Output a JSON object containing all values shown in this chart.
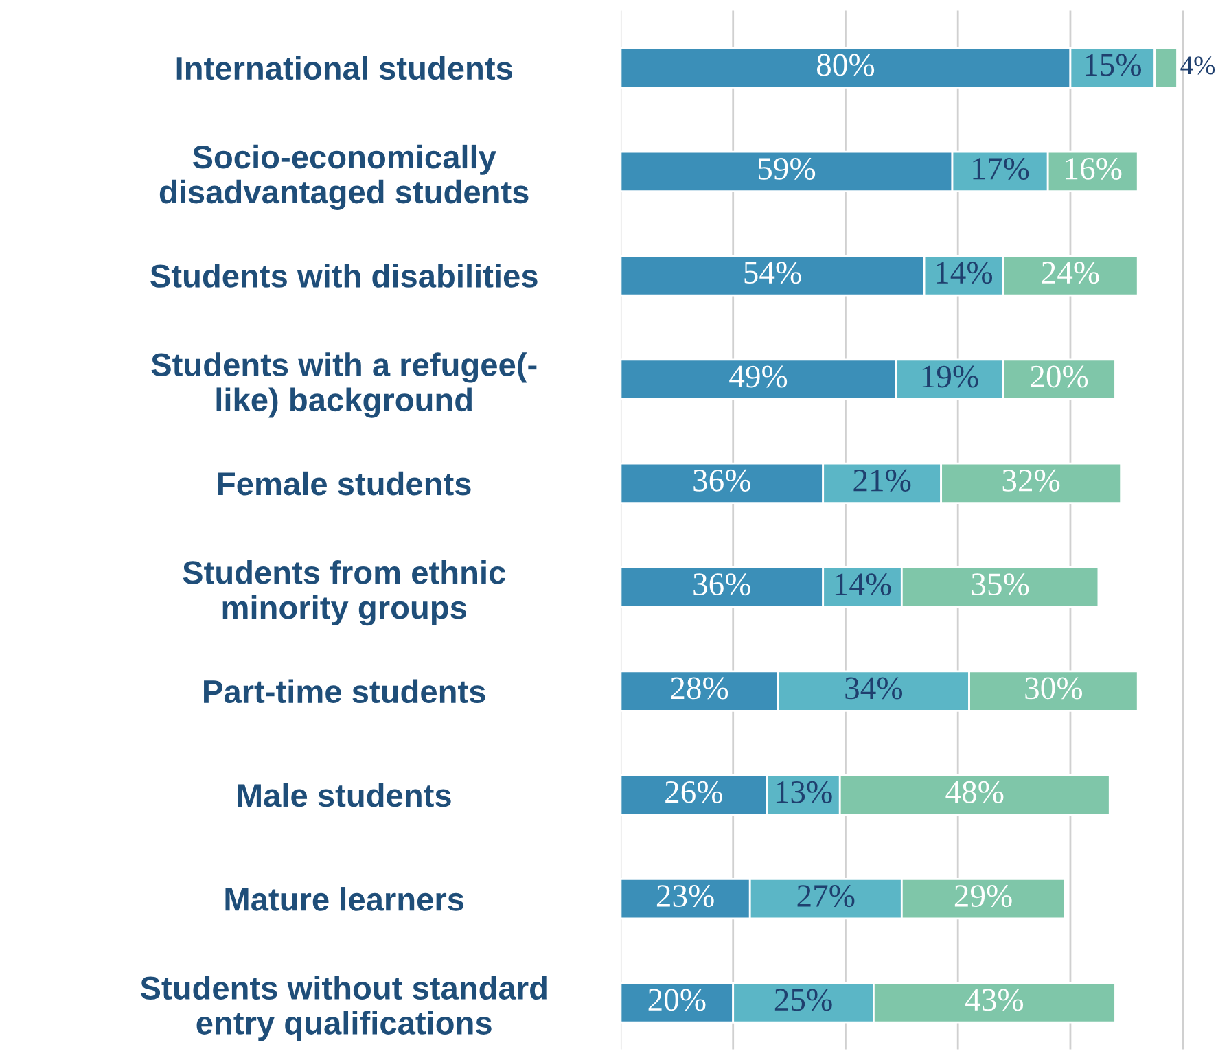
{
  "chart_data": {
    "type": "bar",
    "orientation": "horizontal",
    "stacked": true,
    "categories": [
      "International students",
      "Socio-economically\ndisadvantaged students",
      "Students with disabilities",
      "Students with a refugee(-\nlike) background",
      "Female students",
      "Students from ethnic\nminority groups",
      "Part-time students",
      "Male students",
      "Mature learners",
      "Students without standard\nentry qualifications"
    ],
    "series": [
      {
        "color": "#3b8fb8",
        "values": [
          80,
          59,
          54,
          49,
          36,
          36,
          28,
          26,
          23,
          20
        ],
        "value_labels": [
          "80%",
          "59%",
          "54%",
          "49%",
          "36%",
          "36%",
          "28%",
          "26%",
          "23%",
          "20%"
        ]
      },
      {
        "color": "#5bb6c6",
        "values": [
          15,
          17,
          14,
          19,
          21,
          14,
          34,
          13,
          27,
          25
        ],
        "value_labels": [
          "15%",
          "17%",
          "14%",
          "19%",
          "21%",
          "14%",
          "34%",
          "13%",
          "27%",
          "25%"
        ]
      },
      {
        "color": "#7fc6a9",
        "values": [
          4,
          16,
          24,
          20,
          32,
          35,
          30,
          48,
          29,
          43
        ],
        "value_labels": [
          "4%",
          "16%",
          "24%",
          "20%",
          "32%",
          "35%",
          "30%",
          "48%",
          "29%",
          "43%"
        ]
      }
    ],
    "grid": "x",
    "tick_labels": "y",
    "legend": false
  }
}
